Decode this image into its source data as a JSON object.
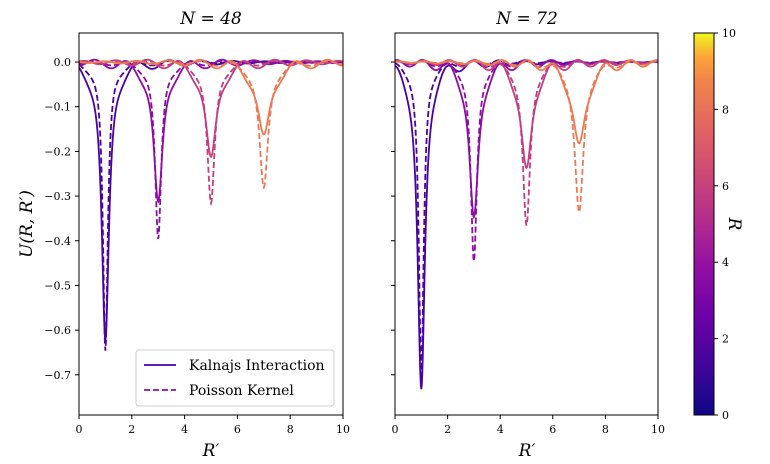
{
  "chart_data": [
    {
      "type": "line",
      "title": "N = 48",
      "xlabel": "R′",
      "ylabel": "U(R, R′)",
      "xlim": [
        0,
        10
      ],
      "ylim": [
        -0.79,
        0.065
      ],
      "xticks": [
        "0",
        "2",
        "4",
        "6",
        "8",
        "10"
      ],
      "yticks": [
        "0.0",
        "−0.1",
        "−0.2",
        "−0.3",
        "−0.4",
        "−0.5",
        "−0.6",
        "−0.7"
      ],
      "legend": {
        "location": "lower-right",
        "entries": [
          {
            "label": "Kalnajs Interaction",
            "style": "solid",
            "color": "#4a02a0"
          },
          {
            "label": "Poisson Kernel",
            "style": "dashed",
            "color": "#8e0ca4"
          }
        ]
      },
      "series": [
        {
          "R": 1,
          "color": "#4a02a0",
          "kalnajs_min": -0.64,
          "poisson_min": -0.655
        },
        {
          "R": 3,
          "color": "#8e0ca4",
          "kalnajs_min": -0.33,
          "poisson_min": -0.405
        },
        {
          "R": 5,
          "color": "#c33d80",
          "kalnajs_min": -0.23,
          "poisson_min": -0.325
        },
        {
          "R": 7,
          "color": "#ed7953",
          "kalnajs_min": -0.18,
          "poisson_min": -0.29
        }
      ]
    },
    {
      "type": "line",
      "title": "N = 72",
      "xlabel": "R′",
      "xlim": [
        0,
        10
      ],
      "ylim": [
        -0.79,
        0.065
      ],
      "xticks": [
        "0",
        "2",
        "4",
        "6",
        "8",
        "10"
      ],
      "series": [
        {
          "R": 1,
          "color": "#4a02a0",
          "kalnajs_min": -0.75,
          "poisson_min": -0.71
        },
        {
          "R": 3,
          "color": "#8e0ca4",
          "kalnajs_min": -0.365,
          "poisson_min": -0.455
        },
        {
          "R": 5,
          "color": "#c33d80",
          "kalnajs_min": -0.255,
          "poisson_min": -0.375
        },
        {
          "R": 7,
          "color": "#ed7953",
          "kalnajs_min": -0.2,
          "poisson_min": -0.345
        }
      ]
    }
  ],
  "colorbar": {
    "label": "R",
    "min": 0,
    "max": 10,
    "ticks": [
      "0",
      "2",
      "4",
      "6",
      "8",
      "10"
    ],
    "colormap": "plasma"
  }
}
